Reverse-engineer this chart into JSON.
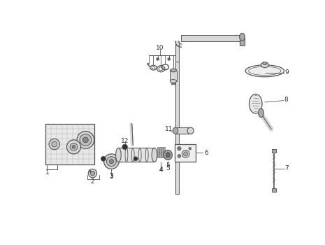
{
  "background_color": "#ffffff",
  "line_color": "#555555",
  "dark_color": "#333333",
  "light_gray": "#d8d8d8",
  "mid_gray": "#aaaaaa",
  "dark_gray": "#666666",
  "figure_width": 4.65,
  "figure_height": 3.5,
  "dpi": 100
}
